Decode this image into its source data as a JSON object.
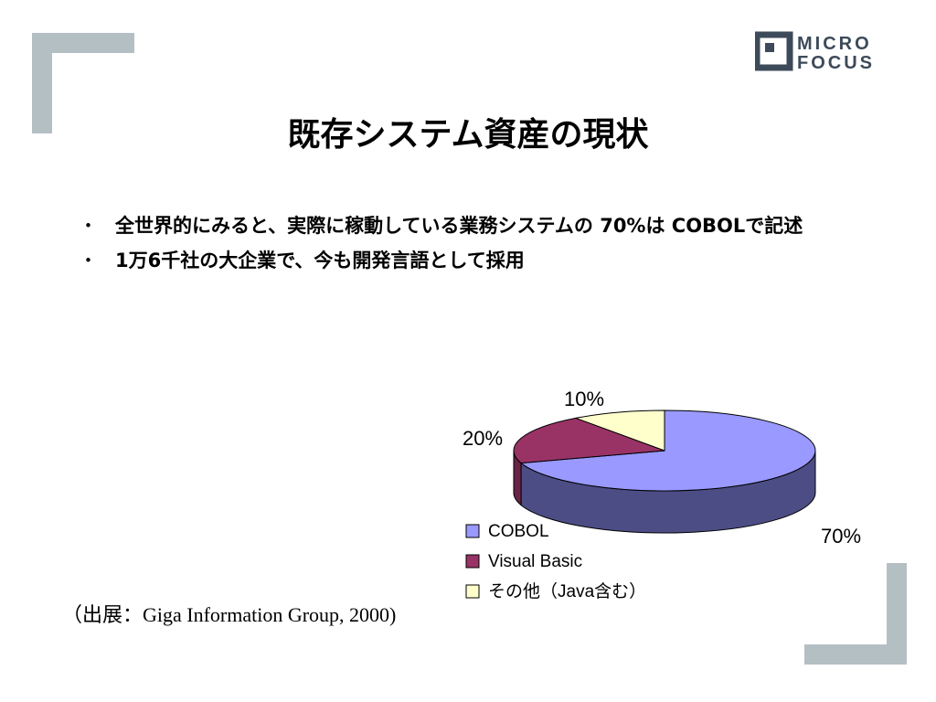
{
  "title": "既存システム資産の現状",
  "logo": {
    "line1": "MICRO",
    "line2": "FOCUS"
  },
  "bullets": [
    {
      "marker": "・",
      "text": "全世界的にみると、実際に稼動している業務システムの 70%は COBOLで記述"
    },
    {
      "marker": "・",
      "text": "1万6千社の大企業で、今も開発言語として採用"
    }
  ],
  "source": "（出展：Giga Information Group, 2000)",
  "colors": {
    "corner": "#b4bfc4",
    "logo": "#3d4a5a",
    "cobol": "#9999ff",
    "cobol_side": "#4d4d86",
    "visual_basic": "#993366",
    "visual_basic_side": "#6a2346",
    "other": "#ffffcc",
    "other_side": "#c8c89a"
  },
  "chart_data": {
    "type": "pie",
    "three_d": true,
    "slices": [
      {
        "label": "COBOL",
        "value": 70,
        "display": "70%"
      },
      {
        "label": "Visual Basic",
        "value": 20,
        "display": "20%"
      },
      {
        "label": "その他（Java含む）",
        "value": 10,
        "display": "10%"
      }
    ],
    "legend": [
      "COBOL",
      "Visual Basic",
      "その他（Java含む）"
    ],
    "legend_position": "bottom-left"
  }
}
